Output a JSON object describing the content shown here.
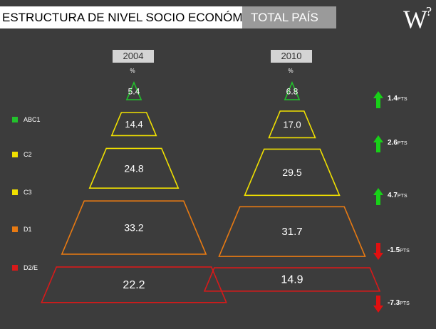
{
  "header": {
    "title": "ESTRUCTURA DE NIVEL SOCIO ECONÓMICO",
    "scope": "TOTAL PAÍS"
  },
  "logo": {
    "letter": "W",
    "mark": "?"
  },
  "unit_label": "%",
  "colors": {
    "ABC1": "#22c22c",
    "C2": "#f0e000",
    "C3": "#f0e000",
    "D1": "#e87a12",
    "D2/E": "#d81a1a",
    "up": "#18d018",
    "down": "#e01010"
  },
  "chart_data": {
    "type": "table",
    "categories": [
      "ABC1",
      "C2",
      "C3",
      "D1",
      "D2/E"
    ],
    "series": [
      {
        "name": "2004",
        "values": [
          5.4,
          14.4,
          24.8,
          33.2,
          22.2
        ],
        "labels": [
          "5.4",
          "14.4",
          "24.8",
          "33.2",
          "22.2"
        ]
      },
      {
        "name": "2010",
        "values": [
          6.8,
          17.0,
          29.5,
          31.7,
          14.9
        ],
        "labels": [
          "6.8",
          "17.0",
          "29.5",
          "31.7",
          "14.9"
        ]
      }
    ],
    "changes": [
      {
        "value": "1.4",
        "unit": "PTS",
        "direction": "up"
      },
      {
        "value": "2.6",
        "unit": "PTS",
        "direction": "up"
      },
      {
        "value": "4.7",
        "unit": "PTS",
        "direction": "up"
      },
      {
        "value": "-1.5",
        "unit": "PTS",
        "direction": "down"
      },
      {
        "value": "-7.3",
        "unit": "PTS",
        "direction": "down"
      }
    ]
  }
}
